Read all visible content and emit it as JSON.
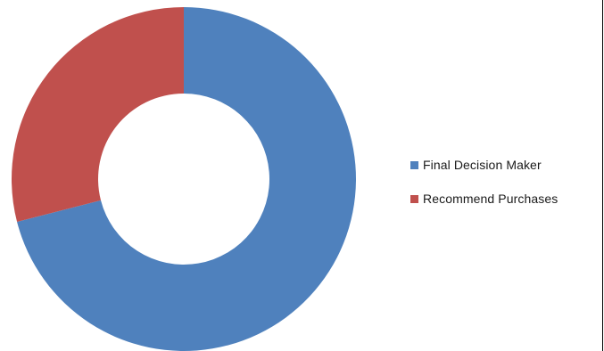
{
  "chart_data": {
    "type": "pie",
    "variant": "donut",
    "labels": [
      "Final Decision Maker",
      "Recommend Purchases"
    ],
    "values": [
      71,
      29
    ],
    "colors": [
      "#4f81bd",
      "#c0504d"
    ],
    "legend_position": "right",
    "title": ""
  }
}
